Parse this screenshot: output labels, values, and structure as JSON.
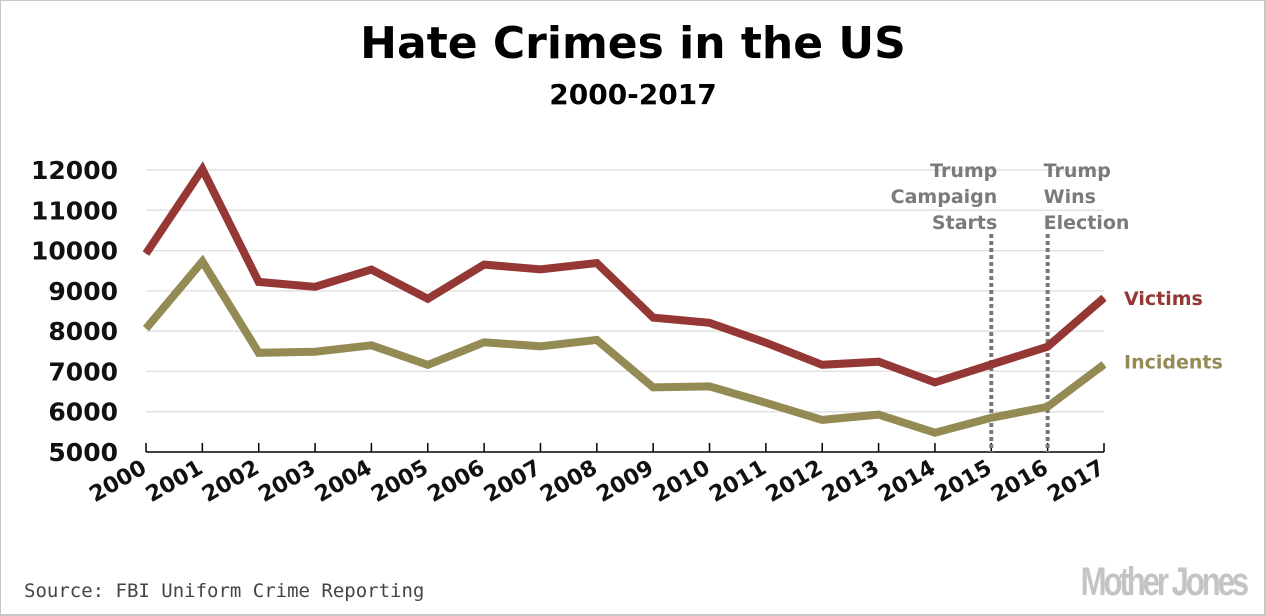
{
  "chart_data": {
    "type": "line",
    "title": "Hate Crimes in the US",
    "subtitle": "2000-2017",
    "xlabel": "",
    "ylabel": "",
    "x": [
      "2000",
      "2001",
      "2002",
      "2003",
      "2004",
      "2005",
      "2006",
      "2007",
      "2008",
      "2009",
      "2010",
      "2011",
      "2012",
      "2013",
      "2014",
      "2015",
      "2016",
      "2017"
    ],
    "yticks": [
      "5000",
      "6000",
      "7000",
      "8000",
      "9000",
      "10000",
      "11000",
      "12000"
    ],
    "ylim": [
      5000,
      12000
    ],
    "grid": true,
    "series": [
      {
        "name": "Victims",
        "color": "#953735",
        "values": [
          9924,
          12020,
          9222,
          9100,
          9528,
          8804,
          9652,
          9535,
          9691,
          8336,
          8208,
          7713,
          7164,
          7242,
          6727,
          7173,
          7615,
          8828
        ]
      },
      {
        "name": "Incidents",
        "color": "#948a54",
        "values": [
          8063,
          9730,
          7462,
          7489,
          7649,
          7163,
          7722,
          7624,
          7783,
          6604,
          6628,
          6222,
          5796,
          5928,
          5479,
          5850,
          6121,
          7175
        ]
      }
    ],
    "annotations": [
      {
        "year": "2015",
        "lines": [
          "Trump",
          "Campaign",
          "Starts"
        ]
      },
      {
        "year": "2016",
        "lines": [
          "Trump",
          "Wins",
          "Election"
        ]
      }
    ],
    "legend_placement": "right (end of lines)"
  },
  "footer": {
    "source": "Source: FBI Uniform Crime Reporting",
    "logo": "Mother Jones"
  }
}
